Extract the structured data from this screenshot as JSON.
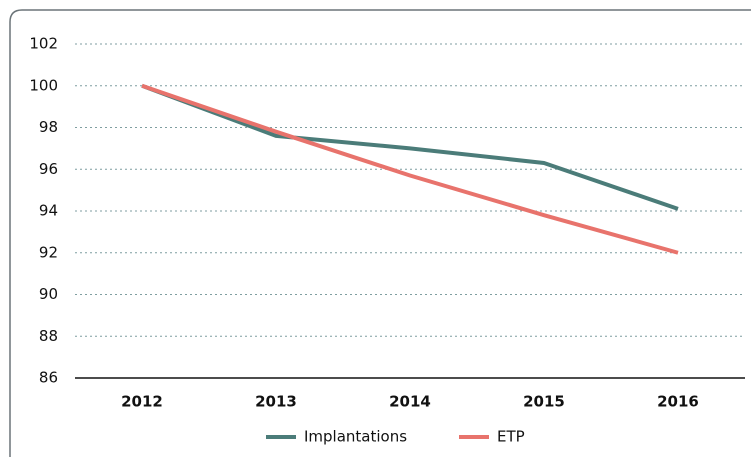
{
  "chart_data": {
    "type": "line",
    "categories": [
      "2012",
      "2013",
      "2014",
      "2015",
      "2016"
    ],
    "series": [
      {
        "name": "Implantations",
        "color": "#4b7c79",
        "values": [
          100,
          97.6,
          97.0,
          96.3,
          94.1
        ]
      },
      {
        "name": "ETP",
        "color": "#e8736c",
        "values": [
          100,
          97.8,
          95.7,
          93.8,
          92.0
        ]
      }
    ],
    "ylim": [
      86,
      102
    ],
    "yticks": [
      86,
      88,
      90,
      92,
      94,
      96,
      98,
      100,
      102
    ],
    "grid": true,
    "legend": "bottom"
  }
}
